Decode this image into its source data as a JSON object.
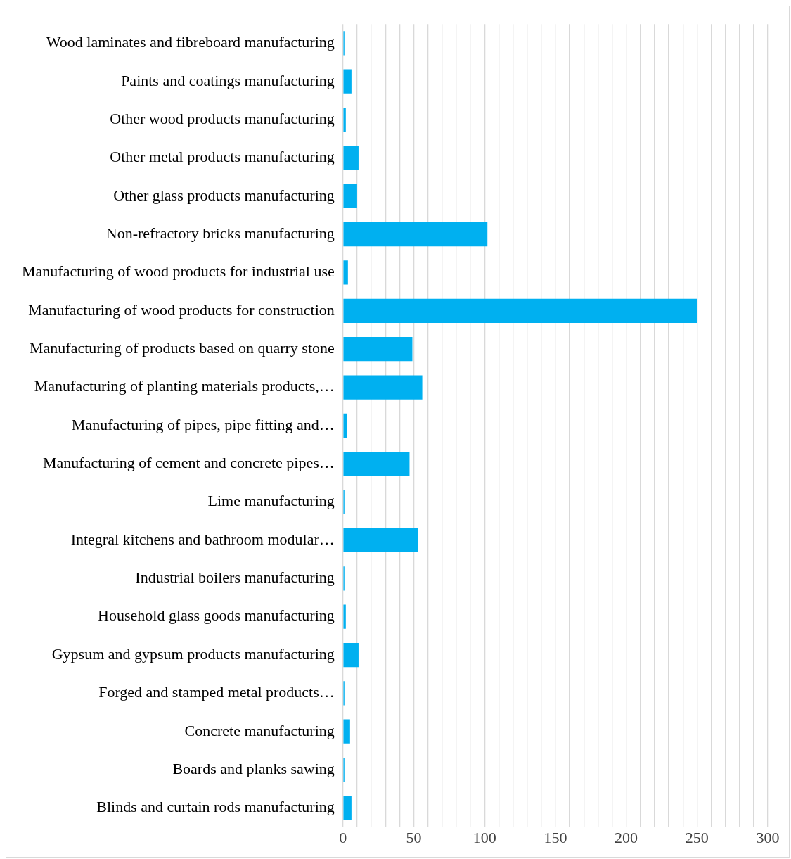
{
  "chart_data": {
    "type": "bar",
    "orientation": "horizontal",
    "categories": [
      "Wood laminates and fibreboard manufacturing",
      "Paints and coatings manufacturing",
      "Other wood products manufacturing",
      "Other metal products manufacturing",
      "Other glass products manufacturing",
      "Non-refractory bricks manufacturing",
      "Manufacturing of wood products for industrial use",
      "Manufacturing of wood products for construction",
      "Manufacturing of products based on quarry stone",
      "Manufacturing of planting materials products,…",
      "Manufacturing of pipes, pipe fitting and…",
      "Manufacturing of cement and concrete pipes…",
      "Lime manufacturing",
      "Integral kitchens and bathroom modular…",
      "Industrial boilers manufacturing",
      "Household glass goods manufacturing",
      "Gypsum and gypsum products manufacturing",
      "Forged and stamped metal products…",
      "Concrete manufacturing",
      "Boards and planks sawing",
      "Blinds and curtain rods manufacturing"
    ],
    "values": [
      1,
      6,
      2,
      11,
      10,
      102,
      3.5,
      250,
      49,
      56,
      3,
      47,
      1,
      53,
      1,
      2,
      11,
      1,
      5,
      1,
      6
    ],
    "color": "#00b0f0",
    "xlim": [
      0,
      300
    ],
    "xticks": [
      0,
      {
        "value": 10,
        "label": null
      },
      {
        "value": 20,
        "label": null
      },
      {
        "value": 30,
        "label": null
      },
      {
        "value": 40,
        "label": null
      },
      50,
      {
        "value": 60,
        "label": null
      },
      {
        "value": 70,
        "label": null
      },
      {
        "value": 80,
        "label": null
      },
      {
        "value": 90,
        "label": null
      },
      100,
      {
        "value": 110,
        "label": null
      },
      {
        "value": 120,
        "label": null
      },
      {
        "value": 130,
        "label": null
      },
      {
        "value": 140,
        "label": null
      },
      150,
      {
        "value": 160,
        "label": null
      },
      {
        "value": 170,
        "label": null
      },
      {
        "value": 180,
        "label": null
      },
      {
        "value": 190,
        "label": null
      },
      200,
      {
        "value": 210,
        "label": null
      },
      {
        "value": 220,
        "label": null
      },
      {
        "value": 230,
        "label": null
      },
      {
        "value": 240,
        "label": null
      },
      250,
      {
        "value": 260,
        "label": null
      },
      {
        "value": 270,
        "label": null
      },
      {
        "value": 280,
        "label": null
      },
      {
        "value": 290,
        "label": null
      },
      300
    ],
    "grid": "x"
  }
}
